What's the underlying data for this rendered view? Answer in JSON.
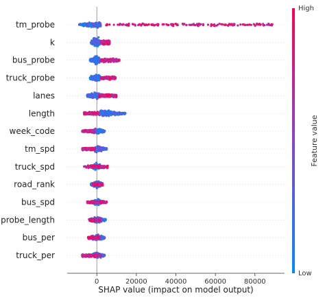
{
  "chart_data": {
    "type": "scatter",
    "subtype": "shap-beeswarm-summary",
    "xlabel": "SHAP value (impact on model output)",
    "xlim": [
      -15000,
      95000
    ],
    "xticks": [
      0,
      20000,
      40000,
      60000,
      80000
    ],
    "xtick_labels": [
      "0",
      "20000",
      "40000",
      "60000",
      "80000"
    ],
    "zero_line": true,
    "row_gridlines": true,
    "colorbar": {
      "title": "Feature value",
      "high_label": "High",
      "low_label": "Low",
      "low_color": "#008bfb",
      "high_color": "#ff0052",
      "mid_color": "#8a44c9",
      "placement": "right"
    },
    "features": [
      {
        "name": "tm_probe",
        "min": -10000,
        "max": 89000,
        "lo_range": [
          -9000,
          2000
        ],
        "hi_range": [
          4000,
          89000
        ],
        "lo_width": 0.5,
        "spread": 0.18
      },
      {
        "name": "k",
        "min": -3000,
        "max": 6500,
        "lo_range": [
          -3000,
          1500
        ],
        "hi_range": [
          2000,
          6500
        ],
        "lo_width": 0.4,
        "spread": 0.3
      },
      {
        "name": "bus_probe",
        "min": -3500,
        "max": 11500,
        "lo_range": [
          -3500,
          1500
        ],
        "hi_range": [
          2000,
          11500
        ],
        "lo_width": 0.45,
        "spread": 0.22
      },
      {
        "name": "truck_probe",
        "min": -3500,
        "max": 9500,
        "lo_range": [
          -3500,
          1500
        ],
        "hi_range": [
          2000,
          9500
        ],
        "lo_width": 0.45,
        "spread": 0.22
      },
      {
        "name": "lanes",
        "min": -5000,
        "max": 10000,
        "lo_range": [
          -5000,
          1500
        ],
        "hi_range": [
          1000,
          10000
        ],
        "lo_width": 0.4,
        "spread": 0.2
      },
      {
        "name": "length",
        "min": -6500,
        "max": 14500,
        "lo_range": [
          1000,
          14500
        ],
        "hi_range": [
          -6500,
          1000
        ],
        "lo_width": 0.45,
        "spread": 0.2
      },
      {
        "name": "week_code",
        "min": -7500,
        "max": 4000,
        "lo_range": [
          -3000,
          4000
        ],
        "hi_range": [
          -7500,
          -1000
        ],
        "lo_width": 0.45,
        "spread": 0.18
      },
      {
        "name": "tm_spd",
        "min": -7500,
        "max": 5000,
        "lo_range": [
          -1000,
          5000
        ],
        "hi_range": [
          -7500,
          -1000
        ],
        "lo_width": 0.45,
        "spread": 0.18
      },
      {
        "name": "truck_spd",
        "min": -6500,
        "max": 5500,
        "lo_range": [
          -3000,
          3000
        ],
        "hi_range": [
          -6500,
          5500
        ],
        "lo_width": 0.2,
        "spread": 0.2
      },
      {
        "name": "road_rank",
        "min": -3000,
        "max": 8000,
        "lo_range": [
          -3000,
          2000
        ],
        "hi_range": [
          -2000,
          3000
        ],
        "lo_width": 0.45,
        "spread": 0.2
      },
      {
        "name": "bus_spd",
        "min": -5000,
        "max": 5000,
        "lo_range": [
          -2500,
          2500
        ],
        "hi_range": [
          -5000,
          5000
        ],
        "lo_width": 0.15,
        "spread": 0.2
      },
      {
        "name": "probe_length",
        "min": -4000,
        "max": 4500,
        "lo_range": [
          -3000,
          4500
        ],
        "hi_range": [
          -4000,
          2000
        ],
        "lo_width": 0.5,
        "spread": 0.18
      },
      {
        "name": "bus_per",
        "min": -4500,
        "max": 4000,
        "lo_range": [
          -3000,
          4000
        ],
        "hi_range": [
          -4500,
          1500
        ],
        "lo_width": 0.5,
        "spread": 0.18
      },
      {
        "name": "truck_per",
        "min": -7500,
        "max": 4000,
        "lo_range": [
          -3500,
          4000
        ],
        "hi_range": [
          -7500,
          2000
        ],
        "lo_width": 0.5,
        "spread": 0.18
      }
    ]
  }
}
